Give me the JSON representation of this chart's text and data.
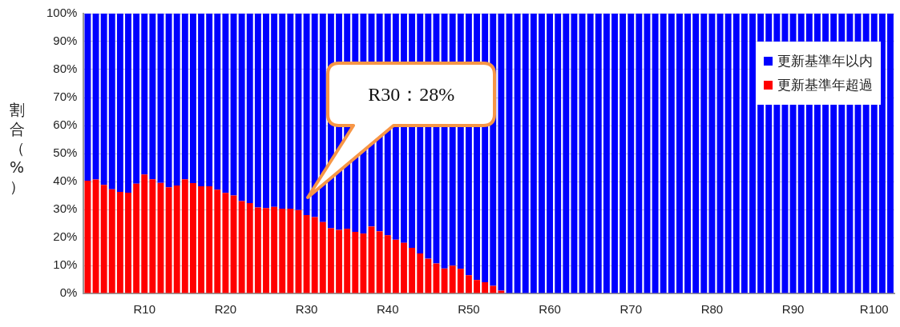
{
  "chart_data": {
    "type": "bar",
    "stacked": true,
    "ylabel": "割合（%）",
    "categories": [
      null,
      null,
      null,
      null,
      null,
      null,
      null,
      "R10",
      null,
      null,
      null,
      null,
      null,
      null,
      null,
      null,
      null,
      "R20",
      null,
      null,
      null,
      null,
      null,
      null,
      null,
      null,
      null,
      "R30",
      null,
      null,
      null,
      null,
      null,
      null,
      null,
      null,
      null,
      "R40",
      null,
      null,
      null,
      null,
      null,
      null,
      null,
      null,
      null,
      "R50",
      null,
      null,
      null,
      null,
      null,
      null,
      null,
      null,
      null,
      "R60",
      null,
      null,
      null,
      null,
      null,
      null,
      null,
      null,
      null,
      "R70",
      null,
      null,
      null,
      null,
      null,
      null,
      null,
      null,
      null,
      "R80",
      null,
      null,
      null,
      null,
      null,
      null,
      null,
      null,
      null,
      "R90",
      null,
      null,
      null,
      null,
      null,
      null,
      null,
      null,
      null,
      "R100",
      null,
      null
    ],
    "series": [
      {
        "name": "更新基準年超過",
        "color": "#ff0000",
        "values": [
          40.3,
          40.7,
          38.8,
          37.2,
          36.3,
          36.0,
          39.2,
          42.5,
          40.8,
          39.5,
          37.9,
          38.6,
          40.8,
          39.4,
          38.3,
          38.3,
          37.1,
          35.9,
          35.0,
          33.0,
          32.3,
          30.7,
          30.5,
          30.9,
          30.3,
          30.3,
          29.8,
          28.0,
          27.3,
          25.5,
          23.3,
          22.7,
          23.1,
          22.0,
          21.4,
          23.9,
          22.2,
          20.8,
          19.2,
          18.1,
          16.3,
          14.3,
          12.4,
          10.7,
          8.9,
          9.9,
          8.8,
          6.5,
          4.8,
          4.0,
          2.7,
          1.0,
          0,
          0,
          0,
          0,
          0,
          0,
          0,
          0,
          0,
          0,
          0,
          0,
          0,
          0,
          0,
          0,
          0,
          0,
          0,
          0,
          0,
          0,
          0,
          0,
          0,
          0,
          0,
          0,
          0,
          0,
          0,
          0,
          0,
          0,
          0,
          0,
          0,
          0,
          0,
          0,
          0,
          0,
          0,
          0,
          0,
          0,
          0,
          0
        ]
      },
      {
        "name": "更新基準年以内",
        "color": "#0000ff",
        "values": [
          59.7,
          59.3,
          61.2,
          62.8,
          63.7,
          64.0,
          60.8,
          57.5,
          59.2,
          60.5,
          62.1,
          61.4,
          59.2,
          60.6,
          61.7,
          61.7,
          62.9,
          64.1,
          65.0,
          67.0,
          67.7,
          69.3,
          69.5,
          69.1,
          69.7,
          69.7,
          70.2,
          72.0,
          72.7,
          74.5,
          76.7,
          77.3,
          76.9,
          78.0,
          78.6,
          76.1,
          77.8,
          79.2,
          80.8,
          81.9,
          83.7,
          85.7,
          87.6,
          89.3,
          91.1,
          90.1,
          91.2,
          93.5,
          95.2,
          96.0,
          97.3,
          99.0,
          100,
          100,
          100,
          100,
          100,
          100,
          100,
          100,
          100,
          100,
          100,
          100,
          100,
          100,
          100,
          100,
          100,
          100,
          100,
          100,
          100,
          100,
          100,
          100,
          100,
          100,
          100,
          100,
          100,
          100,
          100,
          100,
          100,
          100,
          100,
          100,
          100,
          100,
          100,
          100,
          100,
          100,
          100,
          100,
          100,
          100,
          100,
          100
        ]
      }
    ],
    "ylim": [
      0,
      100
    ],
    "yticks": [
      {
        "value": 0,
        "label": "0%"
      },
      {
        "value": 10,
        "label": "10%"
      },
      {
        "value": 20,
        "label": "20%"
      },
      {
        "value": 30,
        "label": "30%"
      },
      {
        "value": 40,
        "label": "40%"
      },
      {
        "value": 50,
        "label": "50%"
      },
      {
        "value": 60,
        "label": "60%"
      },
      {
        "value": 70,
        "label": "70%"
      },
      {
        "value": 80,
        "label": "80%"
      },
      {
        "value": 90,
        "label": "90%"
      },
      {
        "value": 100,
        "label": "100%"
      }
    ],
    "grid": "y",
    "legend": "top right",
    "annotations": [
      "R30：28%"
    ]
  }
}
